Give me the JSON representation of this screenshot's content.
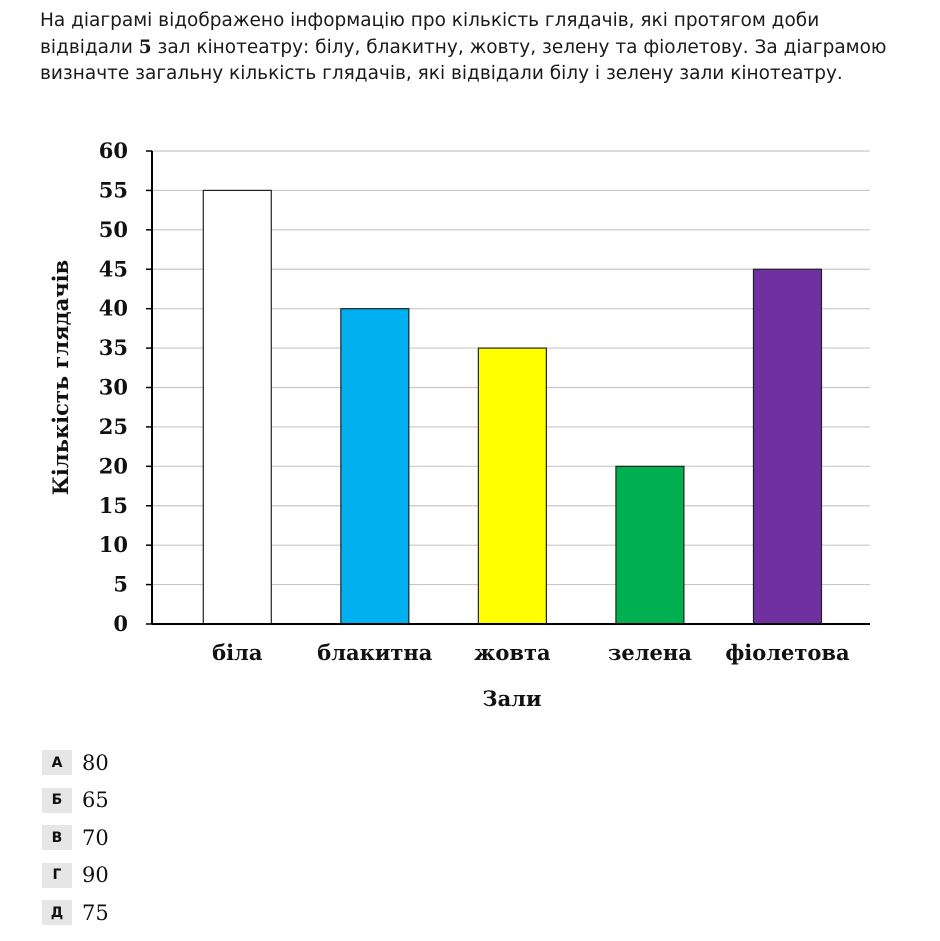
{
  "question": {
    "text_before": "На діаграмі відображено інформацію про кількість глядачів, які протягом доби відвідали ",
    "number": "5",
    "text_after": " зал кінотеатру: білу, блакитну, жовту, зелену та фіолетову. За діаграмою визначте загальну кількість глядачів, які відвідали білу і зелену зали кінотеатру."
  },
  "chart_data": {
    "type": "bar",
    "title": "",
    "xlabel": "Зали",
    "ylabel": "Кількість глядачів",
    "categories": [
      "біла",
      "блакитна",
      "жовта",
      "зелена",
      "фіолетова"
    ],
    "values": [
      55,
      40,
      35,
      20,
      45
    ],
    "colors": [
      "#ffffff",
      "#00b0f0",
      "#ffff00",
      "#00b050",
      "#7030a0"
    ],
    "ylim": [
      0,
      60
    ],
    "yticks": [
      0,
      5,
      10,
      15,
      20,
      25,
      30,
      35,
      40,
      45,
      50,
      55,
      60
    ],
    "grid": true,
    "legend": "none"
  },
  "options": [
    {
      "letter": "А",
      "value": "80"
    },
    {
      "letter": "Б",
      "value": "65"
    },
    {
      "letter": "В",
      "value": "70"
    },
    {
      "letter": "Г",
      "value": "90"
    },
    {
      "letter": "Д",
      "value": "75"
    }
  ]
}
